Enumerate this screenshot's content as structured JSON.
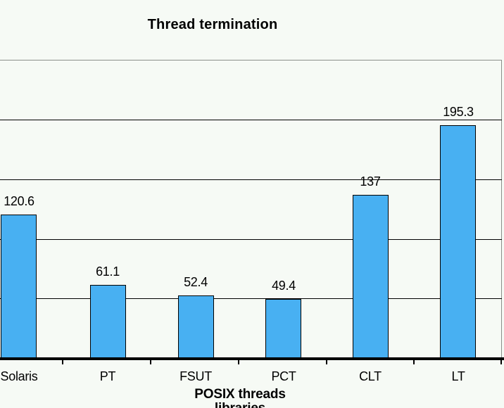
{
  "chart_data": {
    "type": "bar",
    "title": "Thread termination",
    "xlabel": "POSIX threads libraries",
    "ylabel": "",
    "categories": [
      "Solaris",
      "PT",
      "FSUT",
      "PCT",
      "CLT",
      "LT"
    ],
    "values": [
      120.6,
      61.1,
      52.4,
      49.4,
      137,
      195.3
    ],
    "data_labels": [
      "120.6",
      "61.1",
      "52.4",
      "49.4",
      "137",
      "195.3"
    ],
    "ylim": [
      0,
      250
    ],
    "gridline_interval": 50,
    "grid": true,
    "legend": false,
    "y_axis_tick_labels_visible": false,
    "colors": {
      "bar_fill": "#48B0F2",
      "bar_border": "#000000",
      "background": "#F6FAF5",
      "gridline": "#000000",
      "plot_border": "#8a8f8a",
      "axis": "#000000",
      "text": "#000000"
    }
  }
}
